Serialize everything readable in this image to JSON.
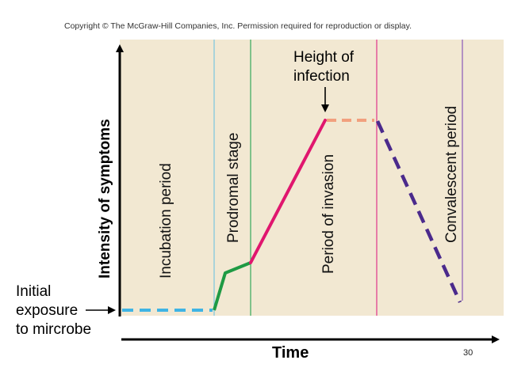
{
  "copyright": "Copyright © The McGraw-Hill Companies, Inc. Permission required for reproduction or display.",
  "axes": {
    "y_label": "Intensity of symptoms",
    "x_label": "Time"
  },
  "phases": [
    {
      "id": "incubation",
      "label": "Incubation period"
    },
    {
      "id": "prodromal",
      "label": "Prodromal stage"
    },
    {
      "id": "invasion",
      "label": "Period of invasion"
    },
    {
      "id": "convalescent",
      "label": "Convalescent period"
    }
  ],
  "annotations": {
    "height_line1": "Height of",
    "height_line2": "infection",
    "exposure_line1": "Initial",
    "exposure_line2": "exposure",
    "exposure_line3": "to mircrobe"
  },
  "slide_number": "30",
  "colors": {
    "background_panel": "#f2e8d2",
    "incubation_line": "#3fb4e4",
    "prodromal_line": "#1f9a44",
    "invasion_line": "#e0166e",
    "plateau_line": "#f2a07e",
    "decline_line": "#4b2a8c",
    "divider_blue": "#7ac6e0",
    "divider_green": "#35a85a",
    "divider_pink": "#e0368a",
    "divider_purple": "#8a5ab8"
  }
}
